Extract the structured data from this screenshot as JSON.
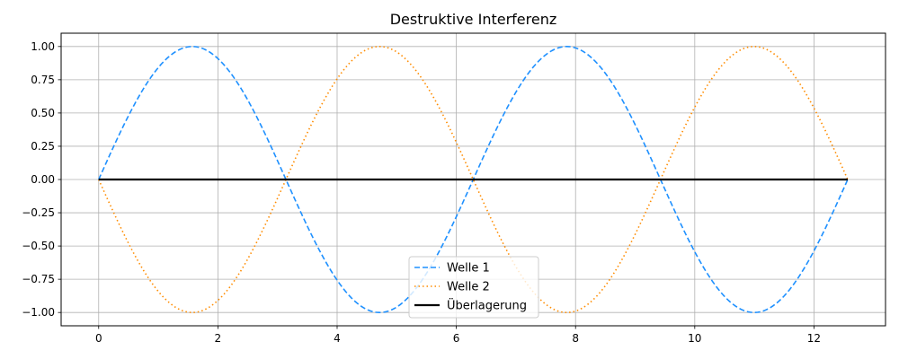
{
  "chart_data": {
    "type": "line",
    "title": "Destruktive Interferenz",
    "xlabel": "",
    "ylabel": "",
    "xlim": [
      -0.63,
      13.2
    ],
    "ylim": [
      -1.1,
      1.1
    ],
    "grid": true,
    "legend_position": "bottom-center",
    "x_ticks": [
      0,
      2,
      4,
      6,
      8,
      10,
      12
    ],
    "x_tick_labels": [
      "0",
      "2",
      "4",
      "6",
      "8",
      "10",
      "12"
    ],
    "y_ticks": [
      -1.0,
      -0.75,
      -0.5,
      -0.25,
      0.0,
      0.25,
      0.5,
      0.75,
      1.0
    ],
    "y_tick_labels": [
      "−1.00",
      "−0.75",
      "−0.50",
      "−0.25",
      "0.00",
      "0.25",
      "0.50",
      "0.75",
      "1.00"
    ],
    "x_range": [
      0,
      12.566
    ],
    "series": [
      {
        "name": "Welle 1",
        "function": "sin(x)",
        "color": "#1e90ff",
        "style": "dashed",
        "key_points": [
          [
            0,
            0
          ],
          [
            1.571,
            1.0
          ],
          [
            3.142,
            0
          ],
          [
            4.712,
            -1.0
          ],
          [
            6.283,
            0
          ],
          [
            7.854,
            1.0
          ],
          [
            9.425,
            0
          ],
          [
            10.996,
            -1.0
          ],
          [
            12.566,
            0
          ]
        ]
      },
      {
        "name": "Welle 2",
        "function": "-sin(x)",
        "color": "#ff8c00",
        "style": "dotted",
        "key_points": [
          [
            0,
            0
          ],
          [
            1.571,
            -1.0
          ],
          [
            3.142,
            0
          ],
          [
            4.712,
            1.0
          ],
          [
            6.283,
            0
          ],
          [
            7.854,
            -1.0
          ],
          [
            9.425,
            0
          ],
          [
            10.996,
            1.0
          ],
          [
            12.566,
            0
          ]
        ]
      },
      {
        "name": "Überlagerung",
        "function": "0",
        "color": "#000000",
        "style": "solid",
        "key_points": [
          [
            0,
            0
          ],
          [
            12.566,
            0
          ]
        ]
      }
    ]
  }
}
